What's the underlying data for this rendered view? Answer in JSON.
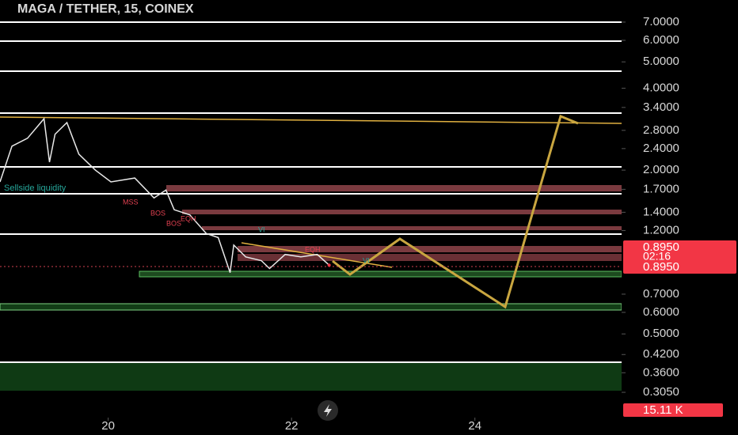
{
  "chart_data": {
    "type": "line",
    "title": "MAGA / TETHER, 15, COINEX",
    "log_scale": true,
    "color": "#e8e8e8",
    "x": [
      18.82,
      18.95,
      19.12,
      19.3,
      19.36,
      19.42,
      19.55,
      19.68,
      19.86,
      20.03,
      20.29,
      20.5,
      20.63,
      20.72,
      20.89,
      21.07,
      21.2,
      21.33,
      21.37,
      21.5,
      21.67,
      21.76,
      21.93,
      22.1,
      22.28,
      22.41
    ],
    "values": [
      1.81,
      2.45,
      2.62,
      3.09,
      2.14,
      2.71,
      2.99,
      2.29,
      2.0,
      1.81,
      1.87,
      1.58,
      1.69,
      1.43,
      1.37,
      1.17,
      1.13,
      0.84,
      1.06,
      0.96,
      0.93,
      0.87,
      0.98,
      0.96,
      0.98,
      0.895
    ],
    "xlim": [
      18.82,
      25.6
    ],
    "xticks": [
      20,
      22,
      24
    ],
    "ylim": [
      0.243,
      8.44
    ],
    "yticks": [
      {
        "value": 7,
        "label": "7.0000"
      },
      {
        "value": 6,
        "label": "6.0000"
      },
      {
        "value": 5,
        "label": "5.0000"
      },
      {
        "value": 4,
        "label": "4.0000"
      },
      {
        "value": 3.4,
        "label": "3.4000"
      },
      {
        "value": 2.8,
        "label": "2.8000"
      },
      {
        "value": 2.4,
        "label": "2.4000"
      },
      {
        "value": 2,
        "label": "2.0000"
      },
      {
        "value": 1.7,
        "label": "1.7000"
      },
      {
        "value": 1.4,
        "label": "1.4000"
      },
      {
        "value": 1.2,
        "label": "1.2000"
      },
      {
        "value": 0.7,
        "label": "0.7000"
      },
      {
        "value": 0.6,
        "label": "0.6000"
      },
      {
        "value": 0.5,
        "label": "0.5000"
      },
      {
        "value": 0.42,
        "label": "0.4200"
      },
      {
        "value": 0.36,
        "label": "0.3600"
      },
      {
        "value": 0.305,
        "label": "0.3050"
      }
    ],
    "annotations": [
      "Sellside liquidity",
      "MSS",
      "BOS",
      "EQH",
      "BOS",
      "VI",
      "EQH",
      "VI"
    ],
    "last_price": 0.895,
    "last_price_label": "0.8950",
    "countdown": "02:16",
    "volume_label": "15.11 K"
  }
}
